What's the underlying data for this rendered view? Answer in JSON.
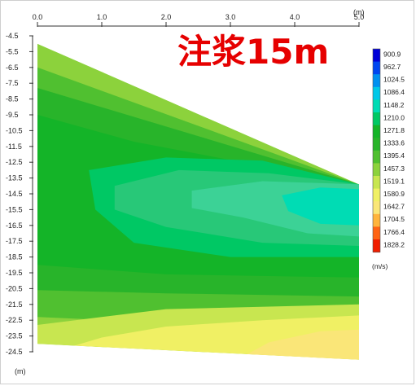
{
  "chart_data": {
    "type": "heatmap",
    "title": "注浆15m",
    "x_unit_label": "(m)",
    "y_unit_label": "(m)",
    "colorbar_unit_label": "(m/s)",
    "x_ticks": [
      "0.0",
      "1.0",
      "2.0",
      "3.0",
      "4.0",
      "5.0"
    ],
    "x_range": [
      0,
      5
    ],
    "y_ticks": [
      "-4.5",
      "-5.5",
      "-6.5",
      "-7.5",
      "-8.5",
      "-9.5",
      "-10.5",
      "-11.5",
      "-12.5",
      "-13.5",
      "-14.5",
      "-15.5",
      "-16.5",
      "-17.5",
      "-18.5",
      "-19.5",
      "-20.5",
      "-21.5",
      "-22.5",
      "-23.5",
      "-24.5"
    ],
    "y_range": [
      -4.5,
      -24.5
    ],
    "colorbar_ticks": [
      "900.9",
      "962.7",
      "1024.5",
      "1086.4",
      "1148.2",
      "1210.0",
      "1271.8",
      "1333.6",
      "1395.4",
      "1457.3",
      "1519.1",
      "1580.9",
      "1642.7",
      "1704.5",
      "1766.4",
      "1828.2"
    ],
    "colorbar_colors": [
      "#0000d8",
      "#0046f0",
      "#0090f0",
      "#00c8e8",
      "#00dcb4",
      "#00c864",
      "#14b428",
      "#28b42a",
      "#50c030",
      "#8cd23c",
      "#c8e650",
      "#f0f064",
      "#fae678",
      "#ffb43c",
      "#ff6414",
      "#f01e00"
    ],
    "domain_polygon": [
      [
        0.0,
        -5.0
      ],
      [
        5.0,
        -13.9
      ],
      [
        5.0,
        -25.0
      ],
      [
        0.0,
        -24.0
      ]
    ],
    "contour_bands": [
      {
        "color": "#8cd23c",
        "polygon": [
          [
            0.0,
            -5.0
          ],
          [
            5.0,
            -13.9
          ],
          [
            5.0,
            -25.0
          ],
          [
            0.0,
            -24.0
          ]
        ]
      },
      {
        "color": "#50c030",
        "polygon": [
          [
            0.0,
            -6.5
          ],
          [
            5.0,
            -13.9
          ],
          [
            5.0,
            -23.2
          ],
          [
            0.0,
            -22.3
          ]
        ]
      },
      {
        "color": "#28b42a",
        "polygon": [
          [
            0.0,
            -7.8
          ],
          [
            5.0,
            -13.9
          ],
          [
            5.0,
            -21.0
          ],
          [
            2.0,
            -20.8
          ],
          [
            0.0,
            -20.6
          ]
        ]
      },
      {
        "color": "#14b428",
        "polygon": [
          [
            0.0,
            -9.5
          ],
          [
            1.5,
            -11.2
          ],
          [
            5.0,
            -13.9
          ],
          [
            5.0,
            -19.8
          ],
          [
            2.0,
            -19.6
          ],
          [
            0.0,
            -19.0
          ]
        ]
      },
      {
        "color": "#00c864",
        "polygon": [
          [
            0.8,
            -13.0
          ],
          [
            2.0,
            -12.2
          ],
          [
            3.5,
            -12.4
          ],
          [
            5.0,
            -13.9
          ],
          [
            5.0,
            -18.5
          ],
          [
            3.0,
            -18.5
          ],
          [
            1.5,
            -17.6
          ],
          [
            0.9,
            -15.5
          ]
        ]
      },
      {
        "color": "#28c878",
        "polygon": [
          [
            1.2,
            -14.0
          ],
          [
            2.2,
            -13.0
          ],
          [
            3.6,
            -13.2
          ],
          [
            5.0,
            -13.9
          ],
          [
            5.0,
            -17.8
          ],
          [
            3.5,
            -17.6
          ],
          [
            2.0,
            -16.6
          ],
          [
            1.2,
            -15.5
          ]
        ]
      },
      {
        "color": "#3cd296",
        "polygon": [
          [
            2.4,
            -14.3
          ],
          [
            3.5,
            -13.7
          ],
          [
            5.0,
            -13.9
          ],
          [
            5.0,
            -17.2
          ],
          [
            4.2,
            -17.0
          ],
          [
            3.2,
            -16.0
          ],
          [
            2.4,
            -15.4
          ]
        ]
      },
      {
        "color": "#00dcb4",
        "polygon": [
          [
            3.8,
            -14.6
          ],
          [
            4.4,
            -14.1
          ],
          [
            5.0,
            -14.2
          ],
          [
            5.0,
            -16.5
          ],
          [
            4.4,
            -16.4
          ],
          [
            3.9,
            -15.6
          ]
        ]
      },
      {
        "color": "#c8e650",
        "polygon": [
          [
            0.0,
            -22.8
          ],
          [
            2.0,
            -21.8
          ],
          [
            5.0,
            -21.5
          ],
          [
            5.0,
            -25.0
          ],
          [
            0.0,
            -24.0
          ]
        ]
      },
      {
        "color": "#f0f064",
        "polygon": [
          [
            0.5,
            -24.2
          ],
          [
            1.0,
            -23.6
          ],
          [
            2.0,
            -22.9
          ],
          [
            3.5,
            -22.5
          ],
          [
            5.0,
            -22.2
          ],
          [
            5.0,
            -25.0
          ],
          [
            0.5,
            -24.1
          ]
        ]
      },
      {
        "color": "#fae678",
        "polygon": [
          [
            3.2,
            -24.8
          ],
          [
            3.6,
            -23.9
          ],
          [
            4.4,
            -23.2
          ],
          [
            5.0,
            -23.1
          ],
          [
            5.0,
            -25.0
          ]
        ]
      }
    ]
  }
}
